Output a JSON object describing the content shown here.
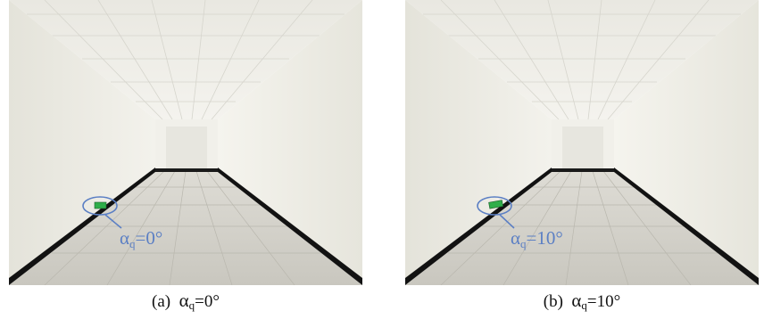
{
  "panels": [
    {
      "id": "a",
      "caption_prefix": "(a)",
      "caption_symbol": "α",
      "caption_sub": "q",
      "caption_value": "=0°",
      "annotation_symbol": "α",
      "annotation_sub": "q",
      "annotation_value": "=0°"
    },
    {
      "id": "b",
      "caption_prefix": "(b)",
      "caption_symbol": "α",
      "caption_sub": "q",
      "caption_value": "=10°",
      "annotation_symbol": "α",
      "annotation_sub": "q",
      "annotation_value": "=10°"
    }
  ],
  "colors": {
    "annotation": "#5b7fc4",
    "wall": "#ecebe3",
    "ceiling": "#efeee8",
    "floor": "#cfcdc6",
    "baseboard": "#121212",
    "exit_sign": "#2fae4a"
  }
}
